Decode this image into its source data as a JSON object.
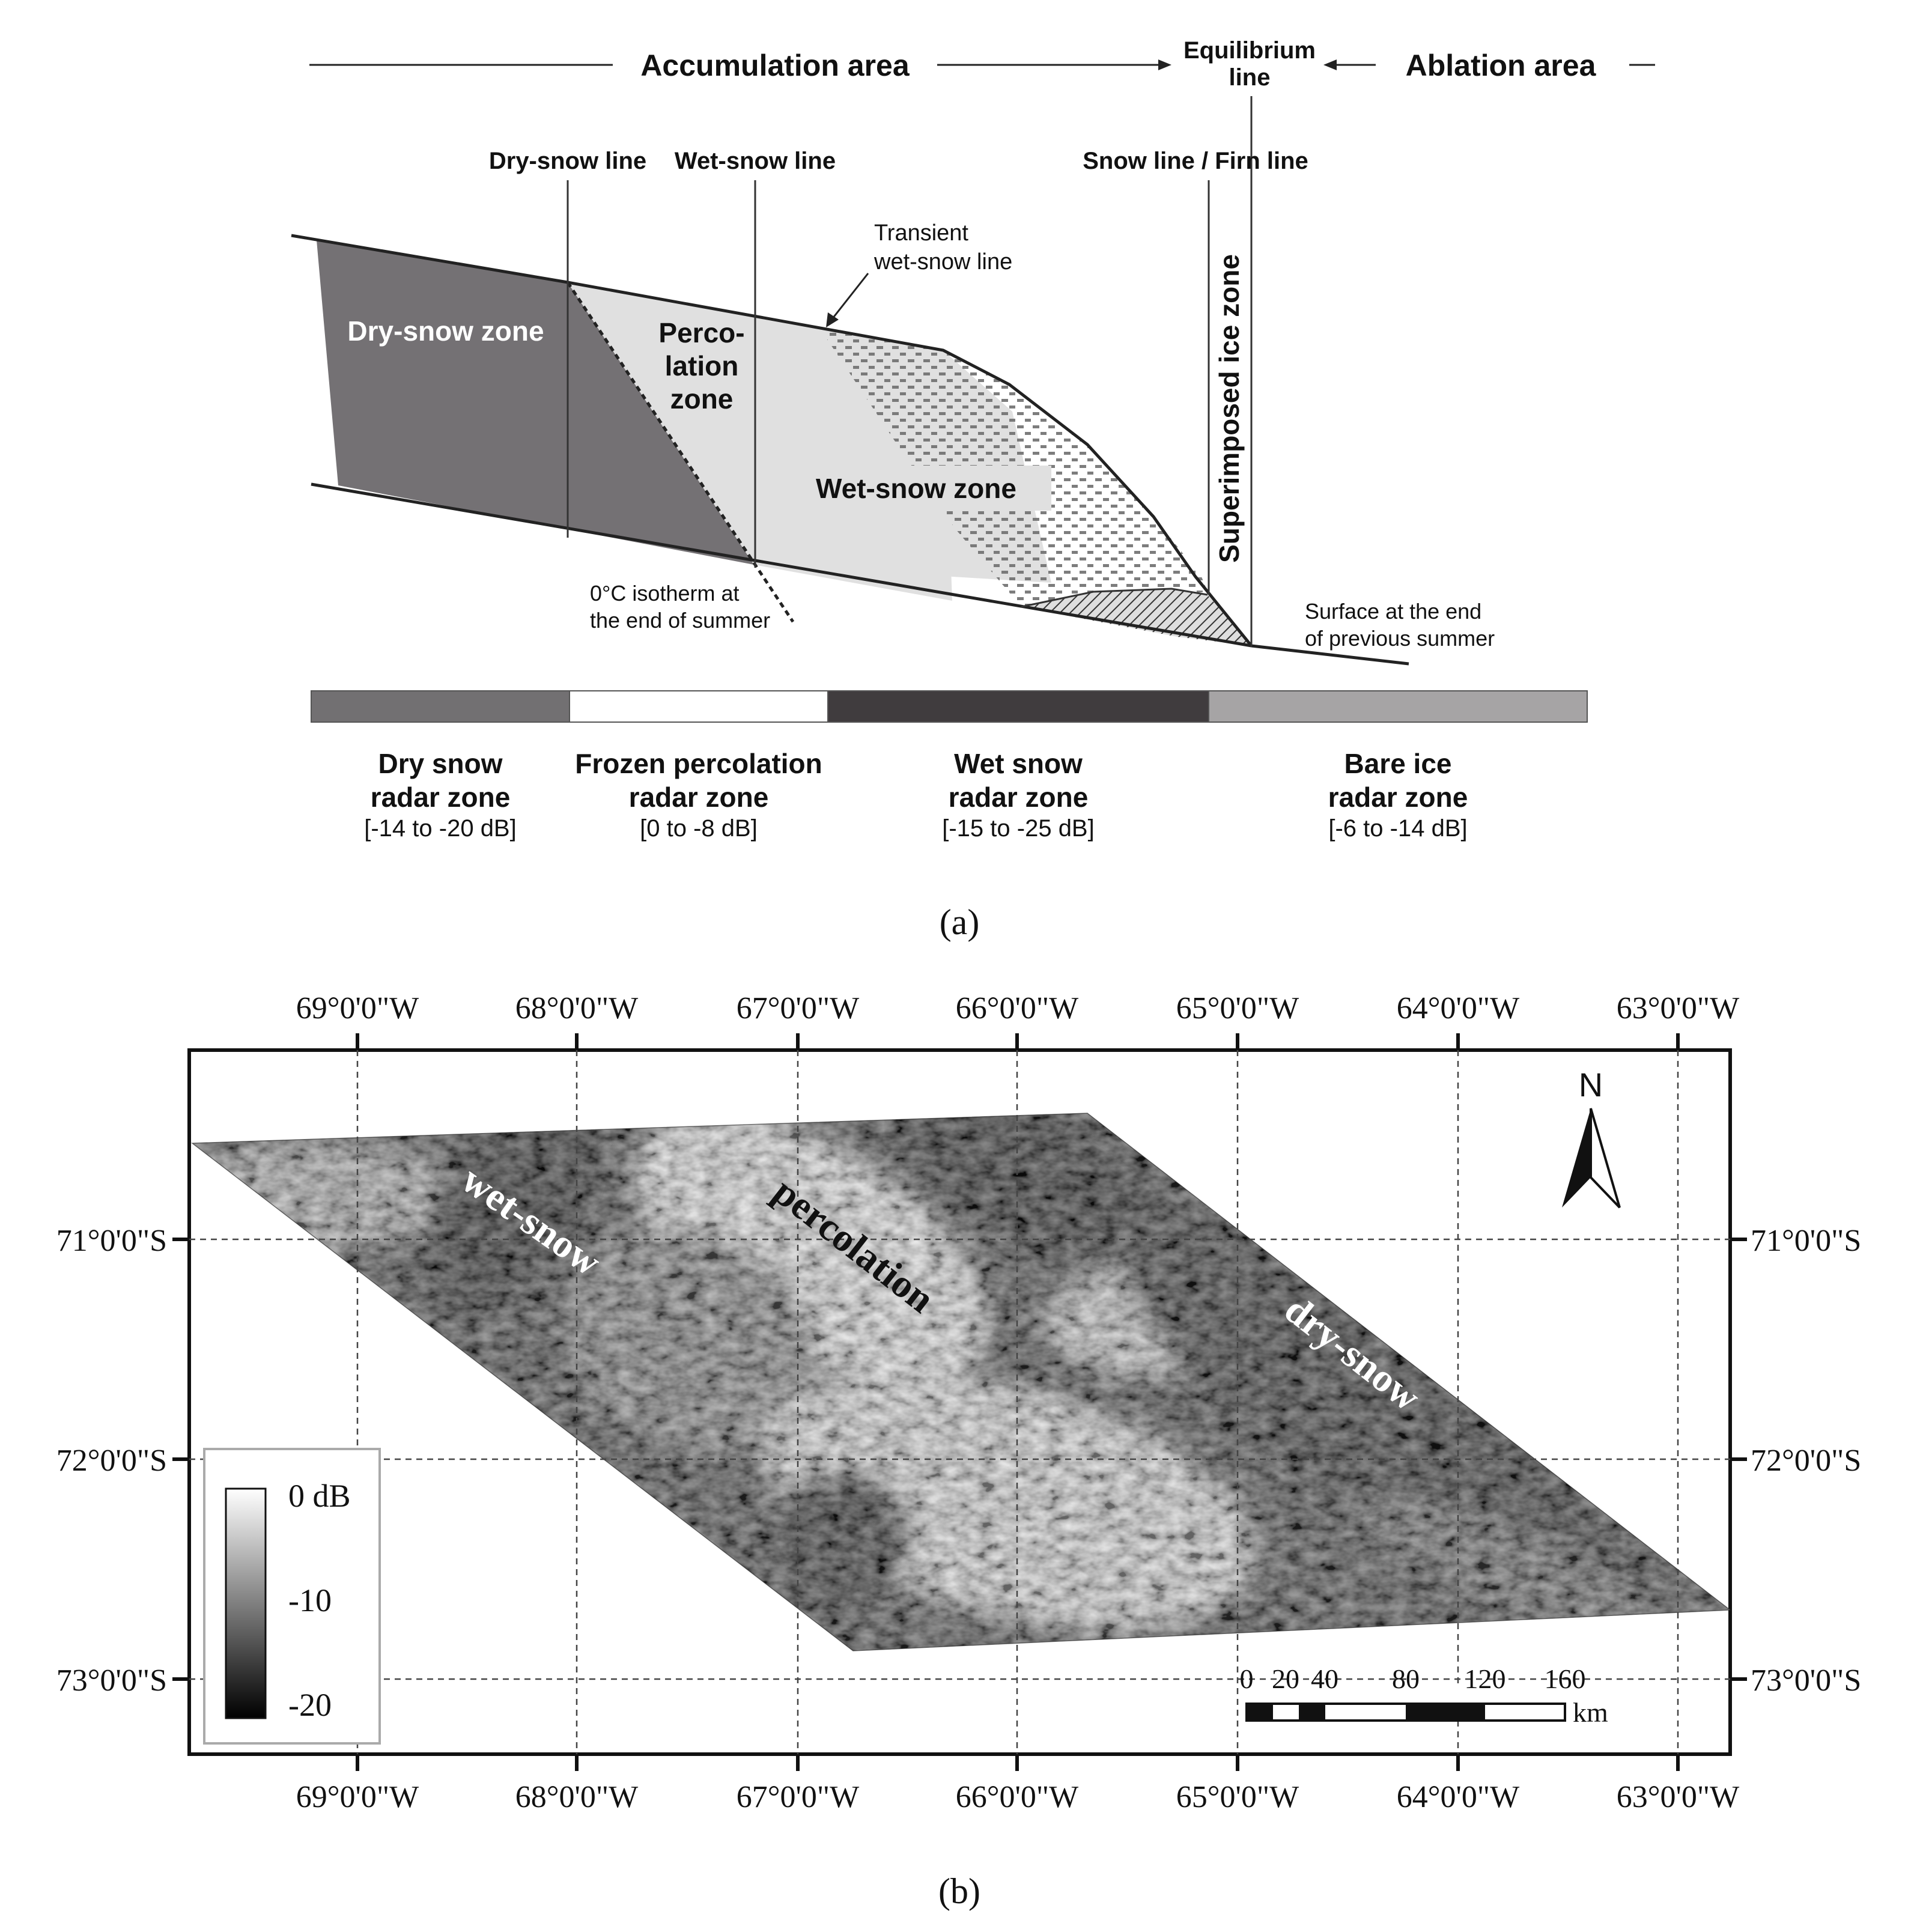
{
  "panel_a": {
    "header": {
      "accumulation_area": "Accumulation area",
      "equilibrium_line_1": "Equilibrium",
      "equilibrium_line_2": "line",
      "ablation_area": "Ablation area"
    },
    "lines": {
      "dry_snow_line": "Dry-snow line",
      "wet_snow_line": "Wet-snow line",
      "snow_firn_line": "Snow line / Firn line",
      "transient_1": "Transient",
      "transient_2": "wet-snow line"
    },
    "zones": {
      "dry_snow": "Dry-snow zone",
      "percolation_1": "Perco-",
      "percolation_2": "lation",
      "percolation_3": "zone",
      "wet_snow": "Wet-snow zone",
      "superimposed_ice": "Superimposed ice zone"
    },
    "annotations": {
      "isotherm_1": "0°C isotherm at",
      "isotherm_2": "the end of summer",
      "surface_1": "Surface at the end",
      "surface_2": "of previous summer"
    },
    "radar_zones": [
      {
        "name_1": "Dry snow",
        "name_2": "radar zone",
        "range": "[-14 to -20 dB]",
        "color": "#727072"
      },
      {
        "name_1": "Frozen percolation",
        "name_2": "radar zone",
        "range": "[0 to -8 dB]",
        "color": "#ffffff"
      },
      {
        "name_1": "Wet snow",
        "name_2": "radar zone",
        "range": "[-15 to -25 dB]",
        "color": "#403c3e"
      },
      {
        "name_1": "Bare ice",
        "name_2": "radar zone",
        "range": "[-6 to -14 dB]",
        "color": "#a6a4a5"
      }
    ],
    "caption": "(a)"
  },
  "panel_b": {
    "longitude_ticks": [
      "69°0'0\"W",
      "68°0'0\"W",
      "67°0'0\"W",
      "66°0'0\"W",
      "65°0'0\"W",
      "64°0'0\"W",
      "63°0'0\"W"
    ],
    "latitude_ticks": [
      "71°0'0\"S",
      "72°0'0\"S",
      "73°0'0\"S"
    ],
    "zone_labels": {
      "wet_snow": "wet-snow",
      "percolation": "percolation",
      "dry_snow": "dry-snow"
    },
    "north": "N",
    "legend": {
      "top": "0 dB",
      "mid": "-10",
      "bottom": "-20"
    },
    "scale_bar": {
      "ticks": [
        "0",
        "20",
        "40",
        "80",
        "120",
        "160"
      ],
      "unit": "km"
    },
    "caption": "(b)"
  }
}
